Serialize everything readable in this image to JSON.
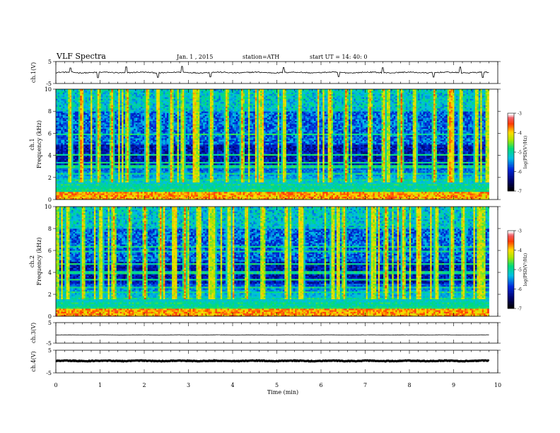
{
  "header": {
    "title": "VLF  Spectra",
    "date": "Jan.  1  , 2015",
    "station": "station=ATH",
    "start": "start  UT  =    14: 40: 0"
  },
  "chart_data": [
    {
      "type": "line",
      "panel": "ch1",
      "ylabel": "ch.1(V)",
      "ylim": [
        -5,
        5
      ],
      "yticks": [
        "5",
        "-5"
      ],
      "xlim": [
        0,
        10
      ],
      "data_end_min": 9.8,
      "level": 0.0,
      "spread": 0.25,
      "spikes": [
        {
          "x": 0.33,
          "y": 2.1
        },
        {
          "x": 0.95,
          "y": -2.4
        },
        {
          "x": 1.6,
          "y": 2.6
        },
        {
          "x": 2.3,
          "y": -2.2
        },
        {
          "x": 2.85,
          "y": 2.8
        },
        {
          "x": 3.5,
          "y": -2.0
        },
        {
          "x": 5.15,
          "y": 2.3
        },
        {
          "x": 6.4,
          "y": -1.9
        },
        {
          "x": 7.4,
          "y": 2.2
        },
        {
          "x": 8.55,
          "y": -2.1
        },
        {
          "x": 9.15,
          "y": 2.5
        },
        {
          "x": 9.65,
          "y": -2.3
        }
      ]
    },
    {
      "type": "heatmap",
      "panel": "spec1",
      "ylabel": "Frequency  (kHz)",
      "chlabel": "ch.1",
      "ylim": [
        0,
        10
      ],
      "yticks": [
        "0",
        "2",
        "4",
        "6",
        "8",
        "10"
      ],
      "xlim": [
        0,
        10
      ],
      "data_end_min": 9.8,
      "colorbar": {
        "label": "log(PSD(V²/Hz)",
        "range": [
          -7,
          -3
        ],
        "ticks": [
          "-3",
          "-4",
          "-5",
          "-6",
          "-7"
        ]
      },
      "bands_khz": [
        0.35,
        0.6,
        0.9,
        1.3,
        1.8,
        2.4,
        3.0,
        3.3,
        4.1,
        5.9
      ],
      "burst_times_min": [
        0.3,
        0.55,
        0.95,
        1.25,
        1.6,
        2.05,
        2.3,
        2.6,
        2.85,
        3.15,
        3.5,
        3.85,
        4.2,
        4.6,
        5.15,
        5.5,
        6.2,
        6.55,
        7.1,
        7.4,
        7.8,
        8.1,
        8.55,
        8.9,
        9.15,
        9.5
      ]
    },
    {
      "type": "heatmap",
      "panel": "spec2",
      "ylabel": "Frequency  (kHz)",
      "chlabel": "ch.2",
      "ylim": [
        0,
        10
      ],
      "yticks": [
        "0",
        "2",
        "4",
        "6",
        "8",
        "10"
      ],
      "xlim": [
        0,
        10
      ],
      "data_end_min": 9.8,
      "colorbar": {
        "label": "log(PSD(V²/Hz)",
        "range": [
          -7,
          -3
        ],
        "ticks": [
          "-3",
          "-4",
          "-5",
          "-6",
          "-7"
        ]
      },
      "bands_khz": [
        0.4,
        0.8,
        1.2,
        1.6,
        2.2,
        2.7,
        3.3,
        4.0,
        4.8,
        5.9,
        6.3
      ],
      "burst_times_min": [
        0.25,
        0.6,
        1.0,
        1.3,
        1.65,
        2.0,
        2.35,
        2.65,
        2.9,
        3.2,
        3.55,
        3.9,
        4.3,
        4.65,
        5.2,
        5.55,
        6.25,
        6.5,
        7.15,
        7.45,
        7.85,
        8.2,
        8.6,
        8.95,
        9.2,
        9.55
      ]
    },
    {
      "type": "line",
      "panel": "ch3",
      "ylabel": "ch.3(V)",
      "ylim": [
        -5,
        5
      ],
      "yticks": [
        "5",
        "-5"
      ],
      "xlim": [
        0,
        10
      ],
      "data_end_min": 9.8,
      "level": -1.0,
      "spread": 0.08,
      "spikes": []
    },
    {
      "type": "line",
      "panel": "ch4",
      "ylabel": "ch.4(V)",
      "ylim": [
        -5,
        5
      ],
      "yticks": [
        "5",
        "-5"
      ],
      "xlim": [
        0,
        10
      ],
      "data_end_min": 9.8,
      "level": 0.3,
      "spread": 0.15,
      "spikes": []
    }
  ],
  "xaxis": {
    "label": "Time  (min)",
    "ticks": [
      "0",
      "1",
      "2",
      "3",
      "4",
      "5",
      "6",
      "7",
      "8",
      "9",
      "10"
    ]
  }
}
